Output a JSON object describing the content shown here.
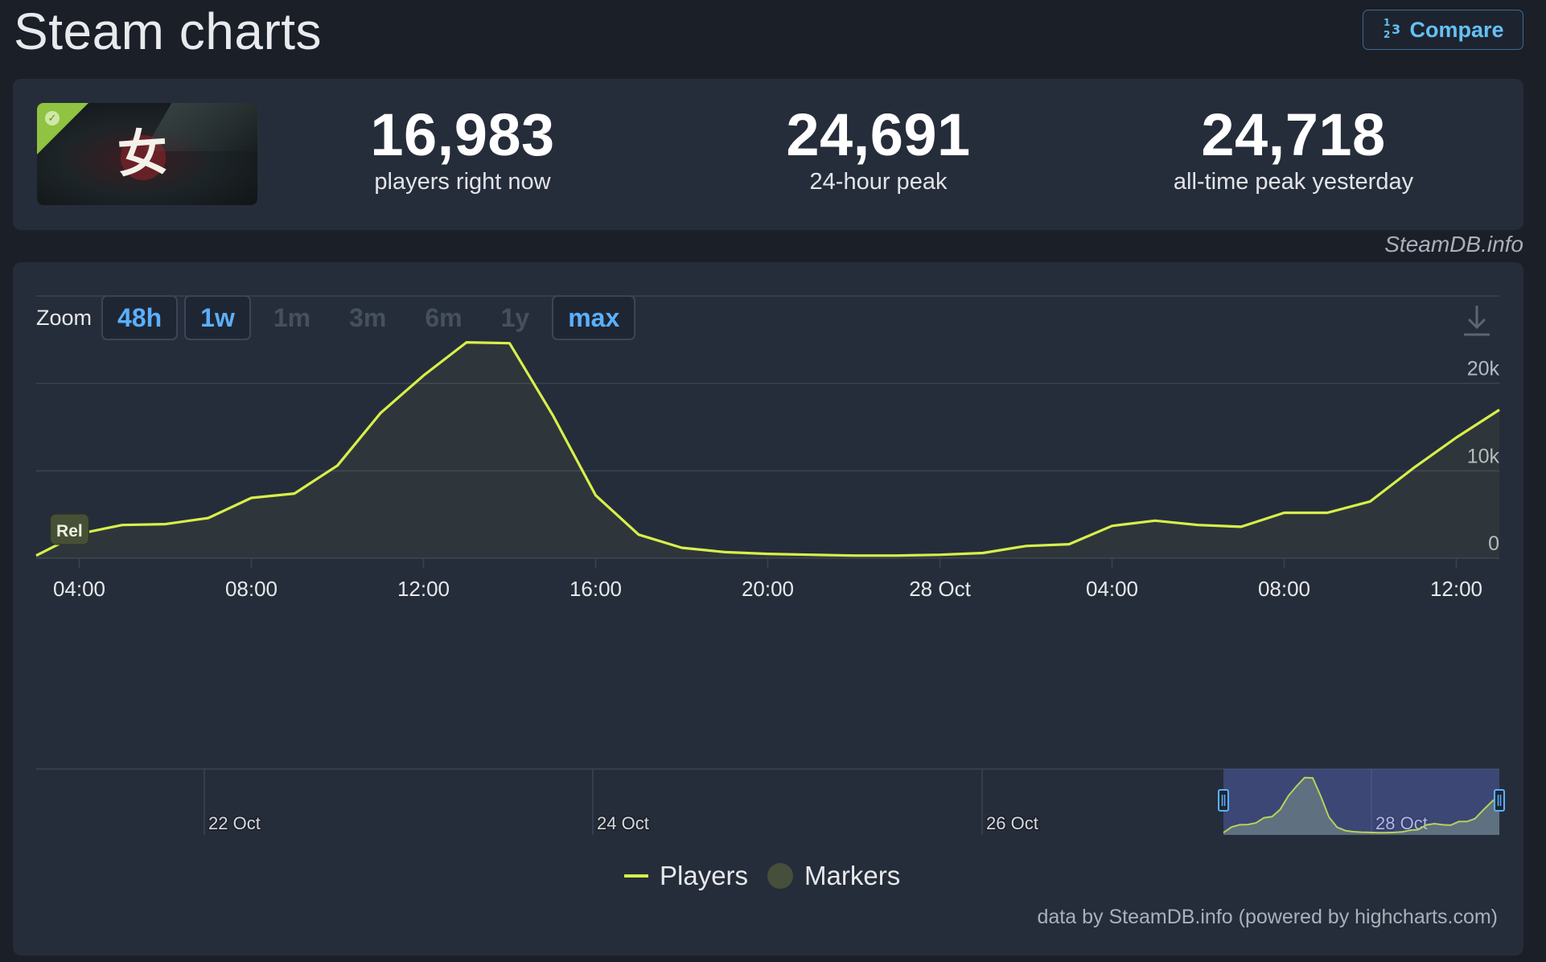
{
  "header": {
    "title": "Steam charts",
    "compare_label": "Compare",
    "compare_icon": "1 2 3"
  },
  "stats": {
    "current": {
      "value": "16,983",
      "label": "players right now"
    },
    "peak24": {
      "value": "24,691",
      "label": "24-hour peak"
    },
    "alltime": {
      "value": "24,718",
      "label": "all-time peak yesterday"
    }
  },
  "credit_top": "SteamDB.info",
  "zoom": {
    "label": "Zoom",
    "buttons": [
      {
        "label": "48h",
        "state": "active"
      },
      {
        "label": "1w",
        "state": "active"
      },
      {
        "label": "1m",
        "state": "disabled"
      },
      {
        "label": "3m",
        "state": "disabled"
      },
      {
        "label": "6m",
        "state": "disabled"
      },
      {
        "label": "1y",
        "state": "disabled"
      },
      {
        "label": "max",
        "state": "active"
      }
    ]
  },
  "chart_data": {
    "type": "line",
    "x_ticks": [
      "04:00",
      "08:00",
      "12:00",
      "16:00",
      "20:00",
      "28 Oct",
      "04:00",
      "08:00",
      "12:00"
    ],
    "x_tick_hours": [
      4,
      8,
      12,
      16,
      20,
      24,
      28,
      32,
      36
    ],
    "y_ticks": [
      "0",
      "10k",
      "20k"
    ],
    "ylim": [
      0,
      30000
    ],
    "xlim_hours": [
      3,
      37
    ],
    "series": [
      {
        "name": "Players",
        "color": "#d7f04a",
        "x_hours": [
          3,
          4,
          5,
          6,
          7,
          8,
          9,
          10,
          11,
          12,
          13,
          14,
          15,
          16,
          17,
          18,
          19,
          20,
          21,
          22,
          23,
          24,
          25,
          26,
          27,
          28,
          29,
          30,
          31,
          32,
          33,
          34,
          35,
          36,
          37
        ],
        "values": [
          300,
          2800,
          3800,
          3900,
          4600,
          6900,
          7400,
          10600,
          16600,
          20900,
          24700,
          24600,
          16400,
          7200,
          2700,
          1200,
          700,
          500,
          400,
          300,
          300,
          400,
          600,
          1400,
          1600,
          3700,
          4300,
          3800,
          3600,
          5200,
          5200,
          6500,
          10300,
          13800,
          16983
        ]
      }
    ],
    "markers": [
      {
        "label": "Rel",
        "x_hour": 3.4,
        "value": 3400
      }
    ],
    "navigator": {
      "labels": [
        "22 Oct",
        "24 Oct",
        "26 Oct",
        "28 Oct"
      ]
    },
    "legend": [
      "Players",
      "Markers"
    ],
    "grid": true,
    "legend_placement": "bottom-center"
  },
  "credit_bottom": "data by SteamDB.info (powered by highcharts.com)"
}
